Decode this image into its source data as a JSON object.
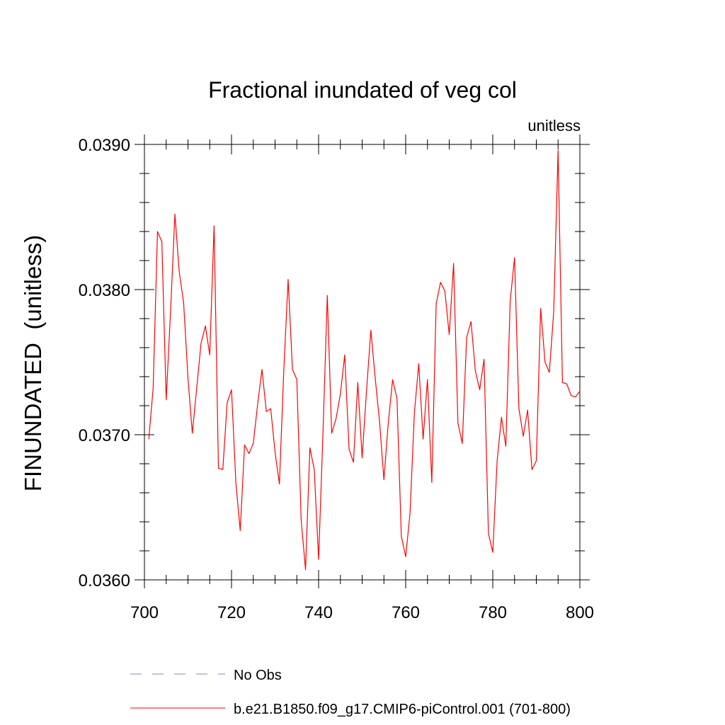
{
  "chart_data": {
    "type": "line",
    "title": "Fractional inundated of veg col",
    "units_label": "unitless",
    "ylabel": "FINUNDATED  (unitless)",
    "xlabel": "",
    "xlim": [
      700,
      800
    ],
    "ylim": [
      0.036,
      0.039
    ],
    "x_ticks": [
      700,
      720,
      740,
      760,
      780,
      800
    ],
    "x_tick_labels": [
      "700",
      "720",
      "740",
      "760",
      "780",
      "800"
    ],
    "y_ticks": [
      0.036,
      0.037,
      0.038,
      0.039
    ],
    "y_tick_labels": [
      "0.0360",
      "0.0370",
      "0.0380",
      "0.0390"
    ],
    "grid": false,
    "legend_position": "bottom",
    "series": [
      {
        "name": "b.e21.B1850.f09_g17.CMIP6-piControl.001 (701-800)",
        "color": "#ff0000",
        "style": "solid",
        "x": [
          701,
          702,
          703,
          704,
          705,
          706,
          707,
          708,
          709,
          710,
          711,
          712,
          713,
          714,
          715,
          716,
          717,
          718,
          719,
          720,
          721,
          722,
          723,
          724,
          725,
          726,
          727,
          728,
          729,
          730,
          731,
          732,
          733,
          734,
          735,
          736,
          737,
          738,
          739,
          740,
          741,
          742,
          743,
          744,
          745,
          746,
          747,
          748,
          749,
          750,
          751,
          752,
          753,
          754,
          755,
          756,
          757,
          758,
          759,
          760,
          761,
          762,
          763,
          764,
          765,
          766,
          767,
          768,
          769,
          770,
          771,
          772,
          773,
          774,
          775,
          776,
          777,
          778,
          779,
          780,
          781,
          782,
          783,
          784,
          785,
          786,
          787,
          788,
          789,
          790,
          791,
          792,
          793,
          794,
          795,
          796,
          797,
          798,
          799,
          800
        ],
        "values": [
          0.03697,
          0.03732,
          0.0384,
          0.03833,
          0.03724,
          0.03785,
          0.03852,
          0.03812,
          0.03791,
          0.03739,
          0.03701,
          0.03732,
          0.03763,
          0.03775,
          0.03755,
          0.03844,
          0.03677,
          0.03676,
          0.03722,
          0.03731,
          0.03667,
          0.03634,
          0.03693,
          0.03687,
          0.03694,
          0.03721,
          0.03745,
          0.03716,
          0.03718,
          0.03688,
          0.03666,
          0.03744,
          0.03807,
          0.03745,
          0.03738,
          0.03641,
          0.03607,
          0.03691,
          0.03676,
          0.03614,
          0.03701,
          0.03796,
          0.03701,
          0.03711,
          0.03728,
          0.03755,
          0.0369,
          0.03681,
          0.03736,
          0.03684,
          0.0373,
          0.03772,
          0.03739,
          0.03709,
          0.03669,
          0.03708,
          0.03738,
          0.03725,
          0.0363,
          0.03616,
          0.03646,
          0.03715,
          0.03749,
          0.03697,
          0.03738,
          0.03667,
          0.0379,
          0.03805,
          0.03799,
          0.03769,
          0.03818,
          0.03708,
          0.03694,
          0.03767,
          0.03778,
          0.03744,
          0.03731,
          0.03752,
          0.03632,
          0.03619,
          0.03682,
          0.03712,
          0.03692,
          0.03792,
          0.03822,
          0.03718,
          0.03699,
          0.03717,
          0.03676,
          0.03682,
          0.03787,
          0.0375,
          0.03743,
          0.03785,
          0.03896,
          0.03736,
          0.03735,
          0.03727,
          0.03726,
          0.0373
        ]
      }
    ],
    "legend": [
      {
        "label": "No Obs",
        "color": "#8a80c8",
        "style": "dashed"
      },
      {
        "label": "b.e21.B1850.f09_g17.CMIP6-piControl.001 (701-800)",
        "color": "#ff0000",
        "style": "solid"
      }
    ]
  }
}
